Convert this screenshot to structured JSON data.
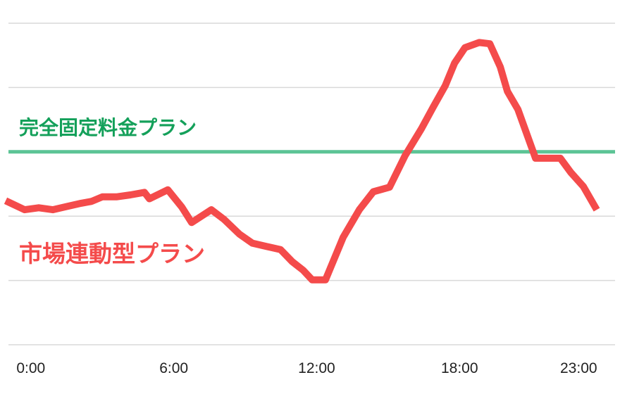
{
  "chart_data": {
    "type": "line",
    "xlim": [
      -1,
      24.5
    ],
    "xticks": [
      {
        "value": 0,
        "label": "0:00"
      },
      {
        "value": 6,
        "label": "6:00"
      },
      {
        "value": 12,
        "label": "12:00"
      },
      {
        "value": 18,
        "label": "18:00"
      },
      {
        "value": 23,
        "label": "23:00"
      }
    ],
    "ylim": [
      0,
      5
    ],
    "yticks": [
      0,
      1,
      2,
      3,
      4,
      5
    ],
    "ytick_labels": false,
    "grid": true,
    "series": [
      {
        "name": "市場連動型プラン",
        "color": "#f44b4b",
        "x": [
          -1.06,
          -0.26,
          0.33,
          0.92,
          1.51,
          2.11,
          2.55,
          3.0,
          3.59,
          4.18,
          4.77,
          4.98,
          5.75,
          6.34,
          6.75,
          7.58,
          8.11,
          8.76,
          9.3,
          9.89,
          10.48,
          10.98,
          11.43,
          11.81,
          12.37,
          13.11,
          13.79,
          14.38,
          15.06,
          15.71,
          16.4,
          16.9,
          17.4,
          17.79,
          18.23,
          18.82,
          19.27,
          19.71,
          20.01,
          20.45,
          21.19,
          22.23,
          22.67,
          23.2,
          23.76
        ],
        "values": [
          2.24,
          2.1,
          2.13,
          2.1,
          2.15,
          2.2,
          2.23,
          2.3,
          2.3,
          2.33,
          2.37,
          2.27,
          2.41,
          2.14,
          1.9,
          2.1,
          1.95,
          1.72,
          1.58,
          1.53,
          1.48,
          1.29,
          1.16,
          1.01,
          1.01,
          1.67,
          2.1,
          2.38,
          2.45,
          2.94,
          3.36,
          3.7,
          4.03,
          4.38,
          4.62,
          4.7,
          4.68,
          4.32,
          3.94,
          3.66,
          2.9,
          2.9,
          2.68,
          2.46,
          2.1
        ]
      }
    ],
    "reference_lines": [
      {
        "name": "完全固定料金プラン",
        "value": 3,
        "color": "#5cc495",
        "label_color": "#14a05a"
      }
    ]
  }
}
